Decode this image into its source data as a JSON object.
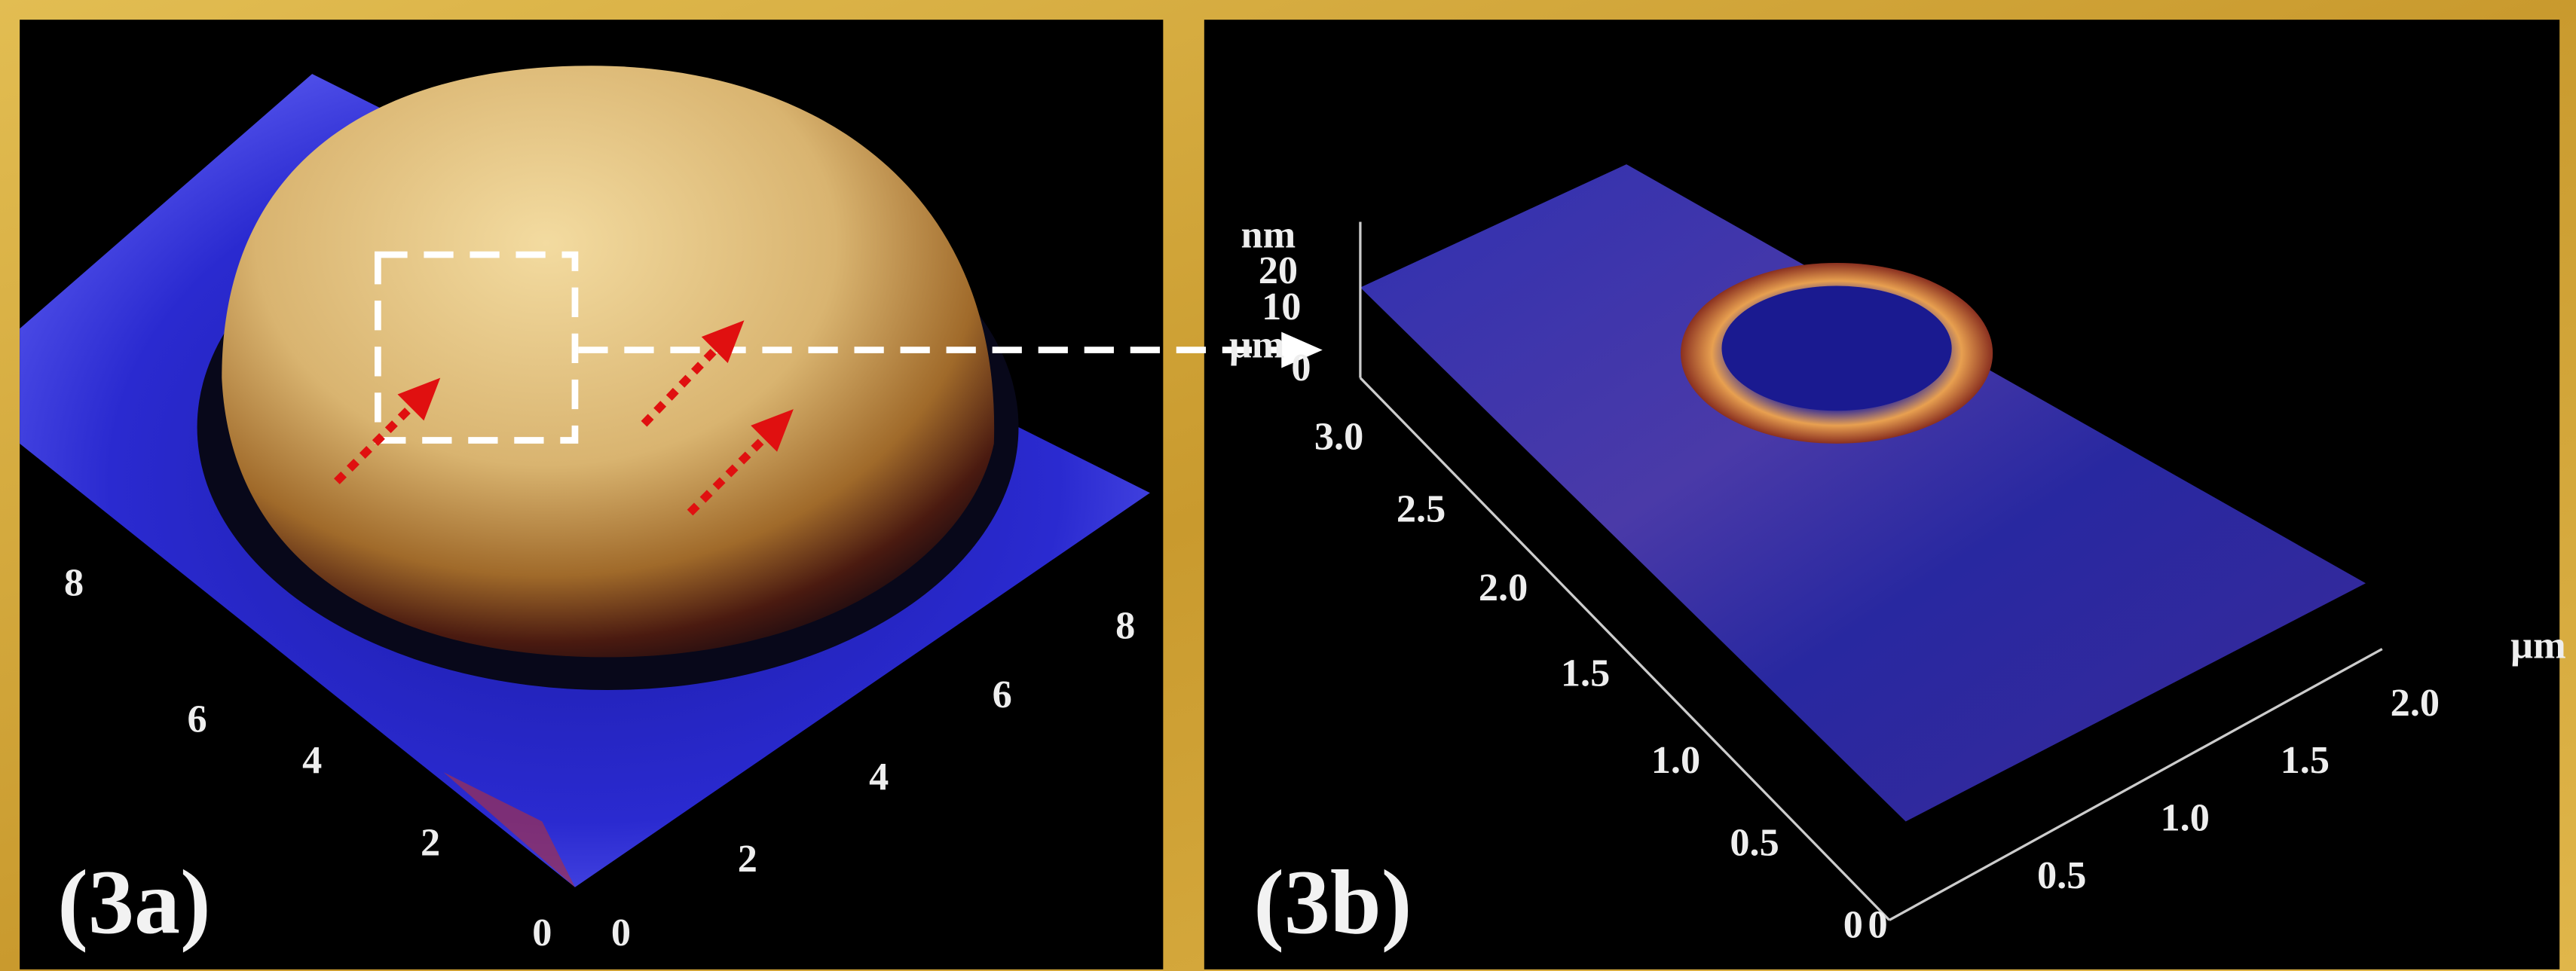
{
  "panels": [
    {
      "label": "(3a)",
      "left_axis_ticks": [
        "8",
        "6",
        "4",
        "2",
        "0"
      ],
      "right_axis_ticks": [
        "0",
        "2",
        "4",
        "6",
        "8"
      ]
    },
    {
      "label": "(3b)",
      "z_unit": "nm",
      "z_ticks": [
        "20",
        "10",
        "0"
      ],
      "z_axis_unit": "µm",
      "y_ticks": [
        "3.0",
        "2.5",
        "2.0",
        "1.5",
        "1.0",
        "0.5",
        "0"
      ],
      "x_ticks": [
        "0",
        "0.5",
        "1.0",
        "1.5",
        "2.0"
      ],
      "x_unit": "µm"
    }
  ]
}
